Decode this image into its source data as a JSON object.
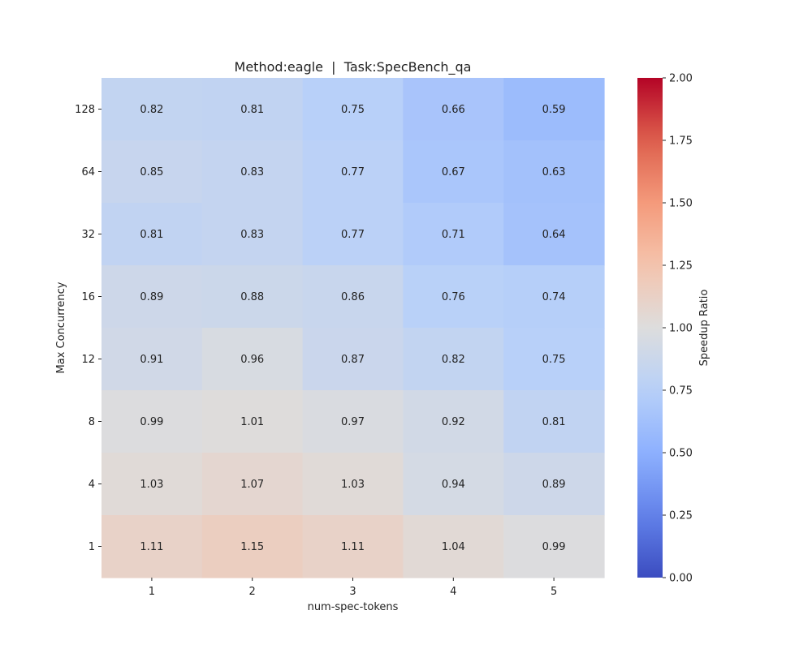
{
  "chart_data": {
    "type": "heatmap",
    "title": "Method:eagle  |  Task:SpecBench_qa",
    "xlabel": "num-spec-tokens",
    "ylabel": "Max Concurrency",
    "x_categories": [
      "1",
      "2",
      "3",
      "4",
      "5"
    ],
    "y_categories": [
      "128",
      "64",
      "32",
      "16",
      "12",
      "8",
      "4",
      "1"
    ],
    "values": [
      [
        0.82,
        0.81,
        0.75,
        0.66,
        0.59
      ],
      [
        0.85,
        0.83,
        0.77,
        0.67,
        0.63
      ],
      [
        0.81,
        0.83,
        0.77,
        0.71,
        0.64
      ],
      [
        0.89,
        0.88,
        0.86,
        0.76,
        0.74
      ],
      [
        0.91,
        0.96,
        0.87,
        0.82,
        0.75
      ],
      [
        0.99,
        1.01,
        0.97,
        0.92,
        0.81
      ],
      [
        1.03,
        1.07,
        1.03,
        0.94,
        0.89
      ],
      [
        1.11,
        1.15,
        1.11,
        1.04,
        0.99
      ]
    ],
    "colorbar": {
      "label": "Speedup Ratio",
      "colormap": "coolwarm",
      "vmin": 0.0,
      "vmax": 2.0,
      "ticks": [
        "0.00",
        "0.25",
        "0.50",
        "0.75",
        "1.00",
        "1.25",
        "1.50",
        "1.75",
        "2.00"
      ]
    }
  }
}
